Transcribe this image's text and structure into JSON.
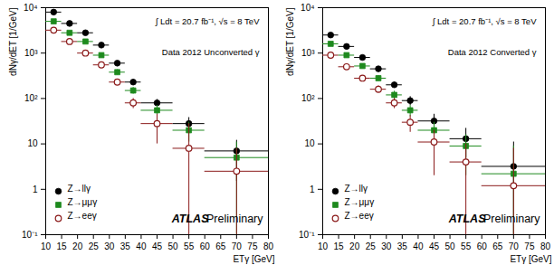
{
  "chart_data": [
    {
      "type": "scatter",
      "xlabel": "ETγ [GeV]",
      "ylabel": "dNγ/dET [1/GeV]",
      "annotations": [
        "∫ Ldt = 20.7 fb⁻¹, √s = 8 TeV",
        "Data 2012 Unconverted γ",
        "ATLAS",
        "Preliminary"
      ],
      "log": "y",
      "legend": "bottom-left",
      "xlim": [
        10,
        80
      ],
      "xticks": [
        10,
        15,
        20,
        25,
        30,
        35,
        40,
        45,
        50,
        55,
        60,
        65,
        70,
        75,
        80
      ],
      "ylim": [
        0.1,
        10000
      ],
      "yticks": [
        {
          "value": 0.1,
          "label": "10⁻¹"
        },
        1,
        10,
        {
          "value": 100,
          "label": "10²"
        },
        {
          "value": 1000,
          "label": "10³"
        },
        {
          "value": 10000,
          "label": "10⁴"
        }
      ],
      "x": [
        12.5,
        17.5,
        22.5,
        27.5,
        32.5,
        37.5,
        45,
        55,
        70
      ],
      "xerr": [
        2.5,
        2.5,
        2.5,
        2.5,
        2.5,
        2.5,
        5,
        5,
        10
      ],
      "series": [
        {
          "name": "Z→llγ",
          "color": "#000000",
          "marker": "circle",
          "values": [
            8000,
            4500,
            2800,
            1500,
            600,
            230,
            80,
            28,
            7
          ],
          "y_low": [
            7600,
            4300,
            2650,
            1400,
            550,
            200,
            65,
            18,
            1.5
          ],
          "y_high": [
            8400,
            4700,
            2950,
            1600,
            650,
            260,
            95,
            38,
            12
          ]
        },
        {
          "name": "Z→μμγ",
          "color": "#1e8a1e",
          "marker": "square",
          "values": [
            5000,
            2800,
            1800,
            900,
            380,
            150,
            55,
            20,
            5
          ],
          "y_low": [
            4700,
            2600,
            1680,
            820,
            330,
            125,
            40,
            11,
            0.05
          ],
          "y_high": [
            5300,
            3000,
            1920,
            980,
            430,
            175,
            70,
            30,
            11
          ]
        },
        {
          "name": "Z→eeγ",
          "color": "#8b1a1a",
          "marker": "open_circle",
          "values": [
            3200,
            1800,
            1000,
            550,
            230,
            80,
            28,
            8,
            2.5
          ],
          "y_low": [
            3000,
            1650,
            910,
            480,
            195,
            60,
            10,
            0.05,
            0.05
          ],
          "y_high": [
            3400,
            1950,
            1090,
            620,
            265,
            100,
            45,
            28,
            8
          ]
        }
      ]
    },
    {
      "type": "scatter",
      "xlabel": "ETγ [GeV]",
      "ylabel": "dNγ/dET [1/GeV]",
      "annotations": [
        "∫ Ldt = 20.7 fb⁻¹, √s = 8 TeV",
        "Data 2012 Converted γ",
        "ATLAS",
        "Preliminary"
      ],
      "log": "y",
      "legend": "bottom-left",
      "xlim": [
        10,
        80
      ],
      "xticks": [
        10,
        15,
        20,
        25,
        30,
        35,
        40,
        45,
        50,
        55,
        60,
        65,
        70,
        75,
        80
      ],
      "ylim": [
        0.1,
        10000
      ],
      "yticks": [
        {
          "value": 0.1,
          "label": "10⁻¹"
        },
        1,
        10,
        {
          "value": 100,
          "label": "10²"
        },
        {
          "value": 1000,
          "label": "10³"
        },
        {
          "value": 10000,
          "label": "10⁴"
        }
      ],
      "x": [
        12.5,
        17.5,
        22.5,
        27.5,
        32.5,
        37.5,
        45,
        55,
        70
      ],
      "xerr": [
        2.5,
        2.5,
        2.5,
        2.5,
        2.5,
        2.5,
        5,
        5,
        10
      ],
      "series": [
        {
          "name": "Z→llγ",
          "color": "#000000",
          "marker": "circle",
          "values": [
            2500,
            1400,
            800,
            450,
            200,
            90,
            32,
            13,
            3.2
          ],
          "y_low": [
            2350,
            1300,
            730,
            400,
            170,
            70,
            20,
            5,
            0.05
          ],
          "y_high": [
            2650,
            1500,
            870,
            500,
            230,
            110,
            45,
            22,
            11
          ]
        },
        {
          "name": "Z→μμγ",
          "color": "#1e8a1e",
          "marker": "square",
          "values": [
            1600,
            900,
            520,
            280,
            120,
            55,
            20,
            9,
            2.2
          ],
          "y_low": [
            1480,
            820,
            460,
            240,
            95,
            40,
            10,
            2,
            0.05
          ],
          "y_high": [
            1720,
            980,
            580,
            320,
            145,
            70,
            30,
            16,
            9
          ]
        },
        {
          "name": "Z→eeγ",
          "color": "#8b1a1a",
          "marker": "open_circle",
          "values": [
            900,
            500,
            280,
            160,
            80,
            30,
            11,
            4,
            1.2
          ],
          "y_low": [
            820,
            440,
            240,
            130,
            60,
            18,
            2,
            0.05,
            0.05
          ],
          "y_high": [
            980,
            560,
            320,
            190,
            100,
            42,
            20,
            10,
            8
          ]
        }
      ]
    }
  ]
}
